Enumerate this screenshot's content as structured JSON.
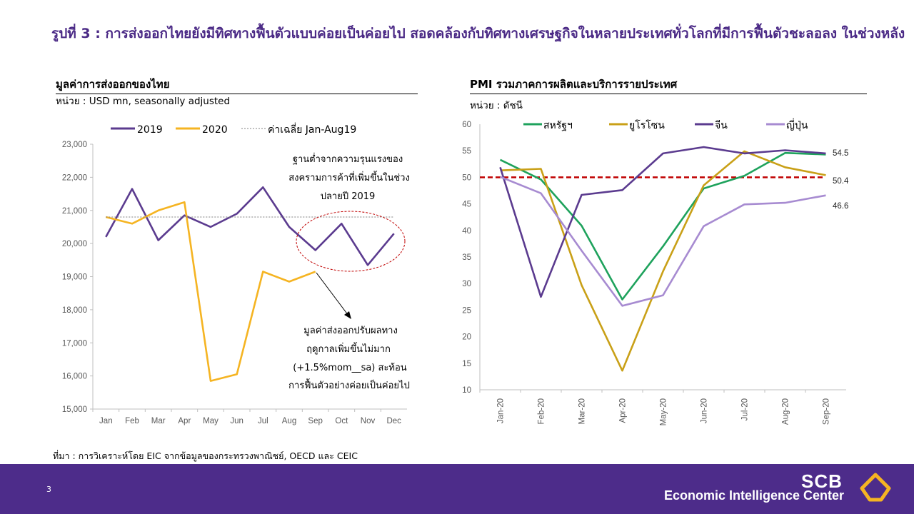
{
  "title": "รูปที่ 3 : การส่งออกไทยยังมีทิศทางฟื้นตัวแบบค่อยเป็นค่อยไป สอดคล้องกับทิศทางเศรษฐกิจในหลายประเทศทั่วโลกที่มีการฟื้นตัวชะลอลง ในช่วงหลัง",
  "left_chart": {
    "heading": "มูลค่าการส่งออกของไทย",
    "unit": "หน่วย : USD mn, seasonally adjusted",
    "annotation_top": [
      "ฐานต่ำจากความรุนแรงของ",
      "สงครามการค้าที่เพิ่มขึ้นในช่วง",
      "ปลายปี 2019"
    ],
    "annotation_bottom": [
      "มูลค่าส่งออกปรับผลทาง",
      "ฤดูกาลเพิ่มขึ้นไม่มาก",
      "(+1.5%mom__sa) สะท้อน",
      "การฟื้นตัวอย่างค่อยเป็นค่อยไป"
    ]
  },
  "right_chart": {
    "heading": "PMI รวมภาคการผลิตและบริการรายประเทศ",
    "unit": "หน่วย : ดัชนี"
  },
  "source": "ที่มา : การวิเคราะห์โดย EIC จากข้อมูลของกระทรวงพาณิชย์, OECD และ CEIC",
  "footer": {
    "page_number": "3",
    "brand": "SCB",
    "brand_sub": "Economic Intelligence Center"
  },
  "colors": {
    "title": "#4b2a86",
    "footer_bg": "#4d2c8a",
    "purple": "#5b3b8f",
    "orange": "#f5b422",
    "green": "#1ea25c",
    "gold": "#c9a017",
    "lavender": "#a78bd1",
    "red_dash": "#c00000"
  },
  "chart_data": [
    {
      "type": "line",
      "categories": [
        "Jan",
        "Feb",
        "Mar",
        "Apr",
        "May",
        "Jun",
        "Jul",
        "Aug",
        "Sep",
        "Oct",
        "Nov",
        "Dec"
      ],
      "ylim": [
        15000,
        23000
      ],
      "yticks": [
        "15,000",
        "16,000",
        "17,000",
        "18,000",
        "19,000",
        "20,000",
        "21,000",
        "22,000",
        "23,000"
      ],
      "ytick_values": [
        15000,
        16000,
        17000,
        18000,
        19000,
        20000,
        21000,
        22000,
        23000
      ],
      "series": [
        {
          "name": "2019",
          "color": "#5b3b8f",
          "style": "solid",
          "values": [
            20200,
            21650,
            20100,
            20850,
            20500,
            20900,
            21700,
            20500,
            19800,
            20600,
            19350,
            20300
          ]
        },
        {
          "name": "2020",
          "color": "#f5b422",
          "style": "solid",
          "values": [
            20800,
            20600,
            21000,
            21250,
            15850,
            16050,
            19150,
            18850,
            19150,
            null,
            null,
            null
          ]
        },
        {
          "name": "ค่าเฉลี่ย Jan-Aug19",
          "color": "#808080",
          "style": "dotted",
          "values": [
            20800,
            20800,
            20800,
            20800,
            20800,
            20800,
            20800,
            20800,
            20800,
            20800,
            20800,
            20800
          ]
        }
      ],
      "legend_position": "top"
    },
    {
      "type": "line",
      "categories": [
        "Jan-20",
        "Feb-20",
        "Mar-20",
        "Apr-20",
        "May-20",
        "Jun-20",
        "Jul-20",
        "Aug-20",
        "Sep-20"
      ],
      "ylim": [
        10,
        60
      ],
      "yticks": [
        "10",
        "15",
        "20",
        "25",
        "30",
        "35",
        "40",
        "45",
        "50",
        "55",
        "60"
      ],
      "ytick_values": [
        10,
        15,
        20,
        25,
        30,
        35,
        40,
        45,
        50,
        55,
        60
      ],
      "reference_line": 50,
      "series": [
        {
          "name": "สหรัฐฯ",
          "color": "#1ea25c",
          "values": [
            53.3,
            49.6,
            40.9,
            27.0,
            37.0,
            47.9,
            50.3,
            54.6,
            54.3
          ]
        },
        {
          "name": "ยูโรโซน",
          "color": "#c9a017",
          "values": [
            51.3,
            51.6,
            29.7,
            13.6,
            32.3,
            48.5,
            54.9,
            51.9,
            50.4
          ]
        },
        {
          "name": "จีน",
          "color": "#5b3b8f",
          "values": [
            51.9,
            27.5,
            46.7,
            47.6,
            54.5,
            55.7,
            54.5,
            55.1,
            54.5
          ]
        },
        {
          "name": "ญี่ปุ่น",
          "color": "#a78bd1",
          "values": [
            50.1,
            47.0,
            36.2,
            25.8,
            27.8,
            40.8,
            44.9,
            45.2,
            46.6
          ]
        }
      ],
      "data_labels": [
        "54.5",
        "50.4",
        "46.6"
      ],
      "legend_position": "top"
    }
  ]
}
